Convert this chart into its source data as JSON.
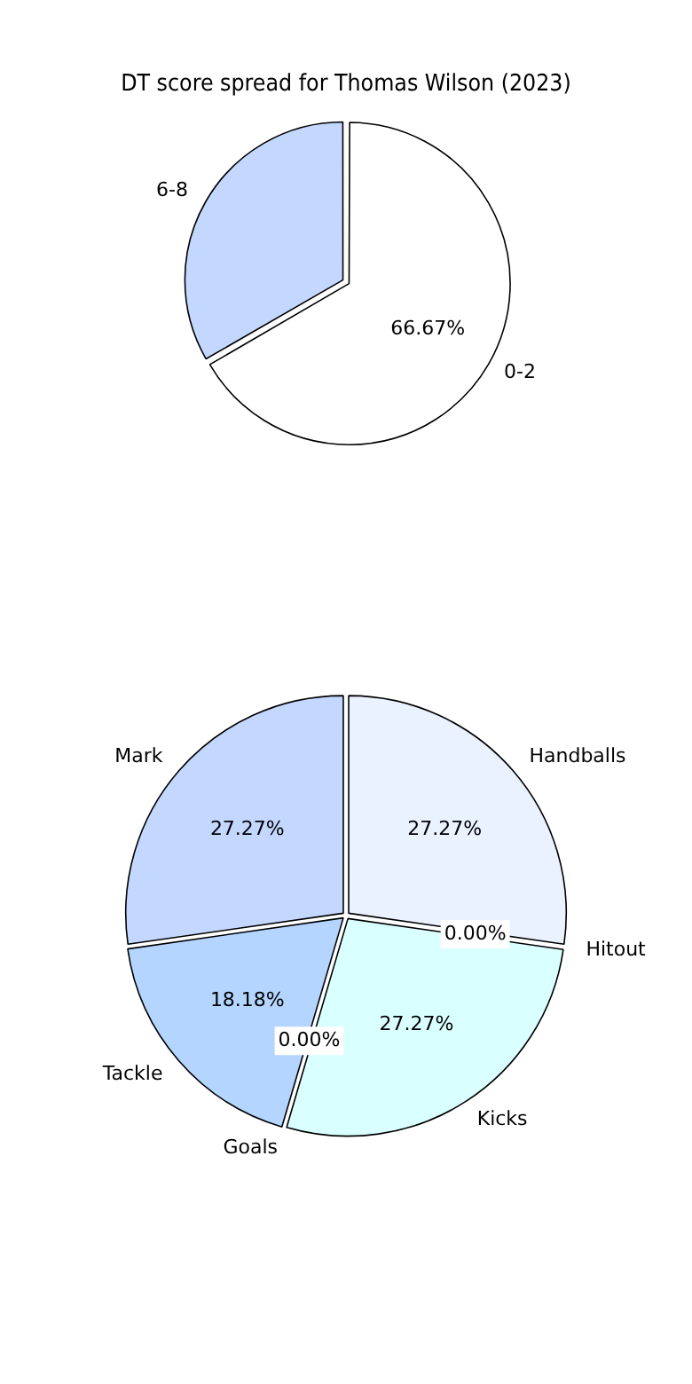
{
  "chart_data": [
    {
      "type": "pie",
      "title": "DT score spread for Thomas Wilson (2023)",
      "categories": [
        "0-2",
        "6-8"
      ],
      "values": [
        66.67,
        33.33
      ],
      "colors": [
        "#ffffff",
        "#c4d8ff"
      ],
      "value_labels": [
        "66.67%",
        null
      ],
      "legend": false
    },
    {
      "type": "pie",
      "categories": [
        "Handballs",
        "Hitout",
        "Kicks",
        "Goals",
        "Tackle",
        "Mark"
      ],
      "values": [
        27.27,
        0,
        27.27,
        0,
        18.18,
        27.27
      ],
      "colors": [
        "#eaf1ff",
        "#e0ecff",
        "#d9ffff",
        "#c8e0ff",
        "#b3d5ff",
        "#c4d8ff"
      ],
      "value_labels": [
        "27.27%",
        "0.00%",
        "27.27%",
        "0.00%",
        "18.18%",
        "27.27%"
      ],
      "legend": false
    }
  ]
}
